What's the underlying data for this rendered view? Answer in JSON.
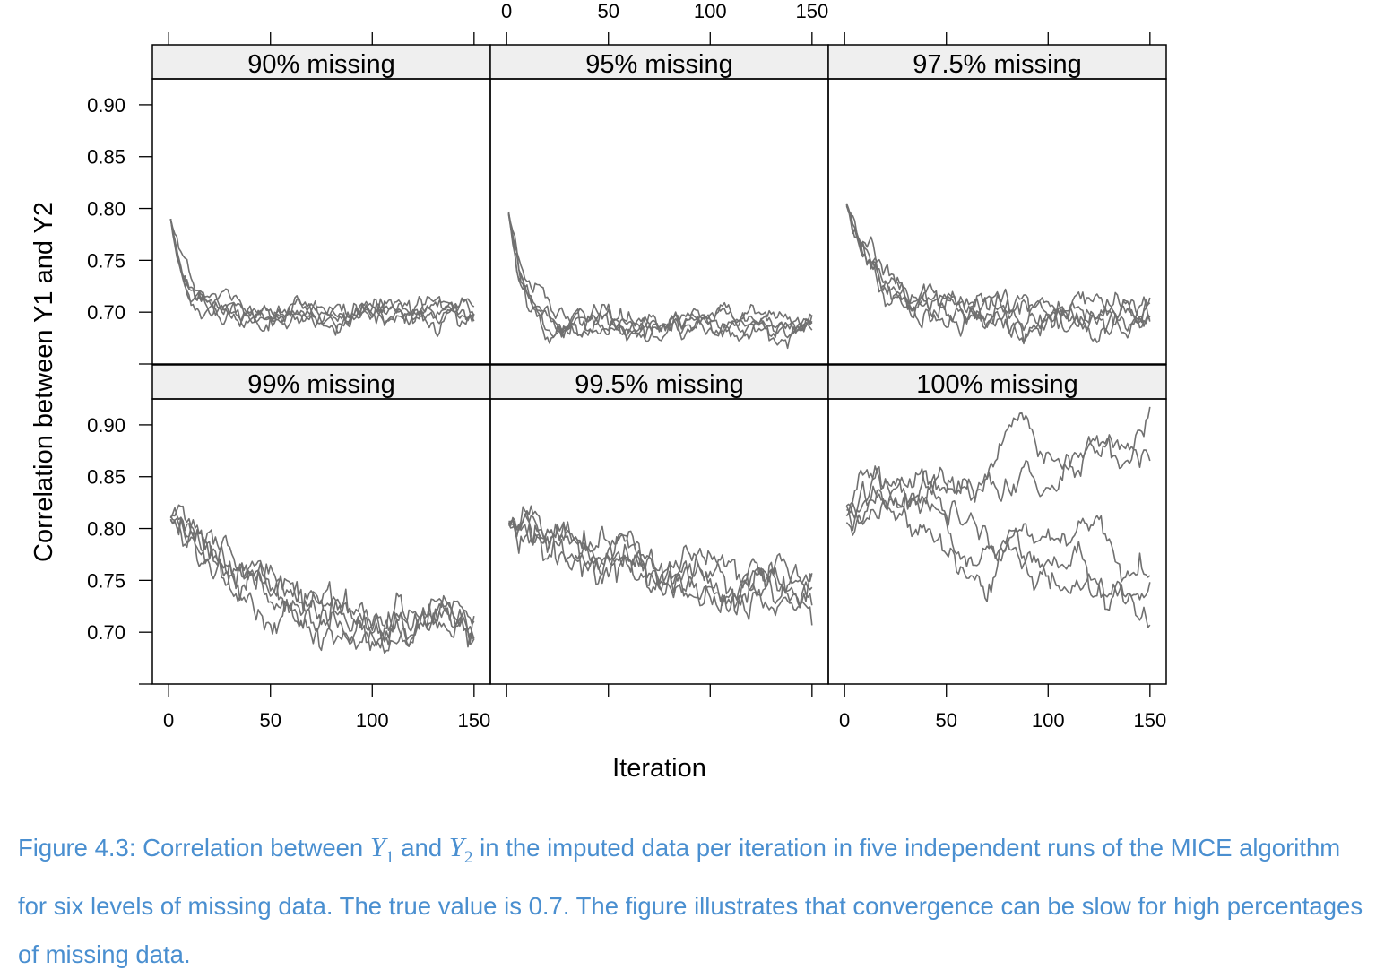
{
  "chart_data": {
    "type": "line",
    "layout": "2x3 trellis panels",
    "xlabel": "Iteration",
    "ylabel": "Correlation between Y1 and Y2",
    "xlim": [
      -8,
      158
    ],
    "ylim": [
      0.65,
      0.925
    ],
    "x_ticks": [
      0,
      50,
      100,
      150
    ],
    "y_ticks": [
      0.7,
      0.75,
      0.8,
      0.85,
      0.9
    ],
    "y_tick_labels": [
      "0.70",
      "0.75",
      "0.80",
      "0.85",
      "0.90"
    ],
    "line_color": "#707070",
    "strip_color": "#efefef",
    "n_iterations": 150,
    "n_runs": 5,
    "panels": [
      {
        "label": "90% missing",
        "start": [
          0.79,
          0.79,
          0.79,
          0.79,
          0.79
        ],
        "end": [
          0.703,
          0.701,
          0.699,
          0.702,
          0.698
        ],
        "tau": 6,
        "noise": 0.004,
        "seed": 11
      },
      {
        "label": "95% missing",
        "start": [
          0.797,
          0.795,
          0.796,
          0.794,
          0.795
        ],
        "end": [
          0.69,
          0.688,
          0.686,
          0.685,
          0.684
        ],
        "tau": 8,
        "noise": 0.004,
        "seed": 23
      },
      {
        "label": "97.5% missing",
        "start": [
          0.805,
          0.803,
          0.804,
          0.802,
          0.804
        ],
        "end": [
          0.704,
          0.703,
          0.7,
          0.698,
          0.695
        ],
        "tau": 14,
        "noise": 0.005,
        "seed": 37
      },
      {
        "label": "99% missing",
        "start": [
          0.811,
          0.81,
          0.809,
          0.812,
          0.808
        ],
        "end": [
          0.709,
          0.705,
          0.7,
          0.697,
          0.695
        ],
        "tau": 45,
        "noise": 0.007,
        "seed": 41
      },
      {
        "label": "99.5% missing",
        "start": [
          0.806,
          0.804,
          0.807,
          0.805,
          0.803
        ],
        "end": [
          0.703,
          0.697,
          0.692,
          0.684,
          0.671
        ],
        "tau": 160,
        "noise": 0.007,
        "seed": 53
      },
      {
        "label": "100% missing",
        "start": [
          0.818,
          0.822,
          0.812,
          0.806,
          0.822
        ],
        "end": [
          0.885,
          0.852,
          0.755,
          0.742,
          0.736
        ],
        "tau": 0,
        "noise": 0.006,
        "seed": 67
      }
    ],
    "top_axis_panel": 1,
    "bottom_axis_panels": [
      0,
      2
    ],
    "grid": false,
    "legend": "none"
  },
  "caption": {
    "prefix": "Figure 4.3: Correlation between ",
    "var1": "Y",
    "var1_sub": "1",
    "mid": " and ",
    "var2": "Y",
    "var2_sub": "2",
    "rest": " in the imputed data per iteration in five independent runs of the MICE algorithm for six levels of missing data. The true value is 0.7. The figure illustrates that convergence can be slow for high percentages of missing data."
  }
}
